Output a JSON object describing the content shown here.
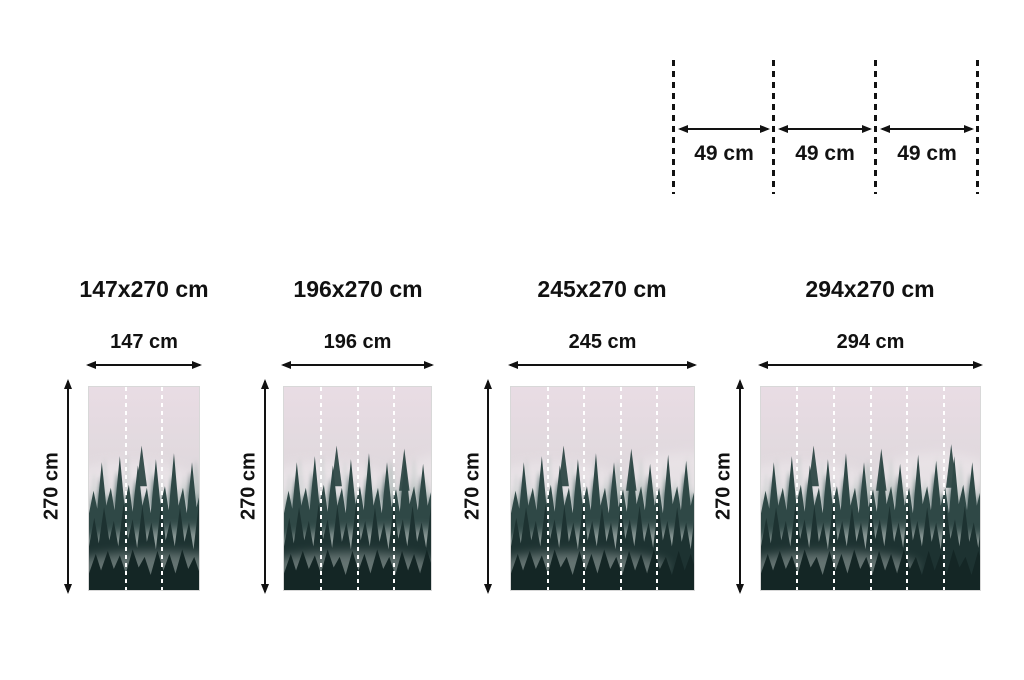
{
  "page": {
    "background": "#ffffff",
    "ink": "#121212"
  },
  "panel_diagram": {
    "description": "wallpaper panel width guide with dashed fold lines",
    "segment_labels": [
      "49 cm",
      "49 cm",
      "49 cm"
    ]
  },
  "sizes": [
    {
      "title": "147x270 cm",
      "width_label": "147 cm",
      "height_label": "270 cm",
      "panels": 3
    },
    {
      "title": "196x270 cm",
      "width_label": "196 cm",
      "height_label": "270 cm",
      "panels": 4
    },
    {
      "title": "245x270 cm",
      "width_label": "245 cm",
      "height_label": "270 cm",
      "panels": 5
    },
    {
      "title": "294x270 cm",
      "width_label": "294 cm",
      "height_label": "270 cm",
      "panels": 6
    }
  ],
  "photo": {
    "subject": "misty coniferous forest in fog",
    "seam_line_color": "#ffffff",
    "palette": {
      "sky": "#e7dbe2",
      "haze": "#f2eef1",
      "trees_far": "#9db0ab",
      "trees_mid": "#587070",
      "trees_dark": "#2f4846",
      "trees_foreground": "#1d3231",
      "trees_deepest": "#142625"
    }
  }
}
